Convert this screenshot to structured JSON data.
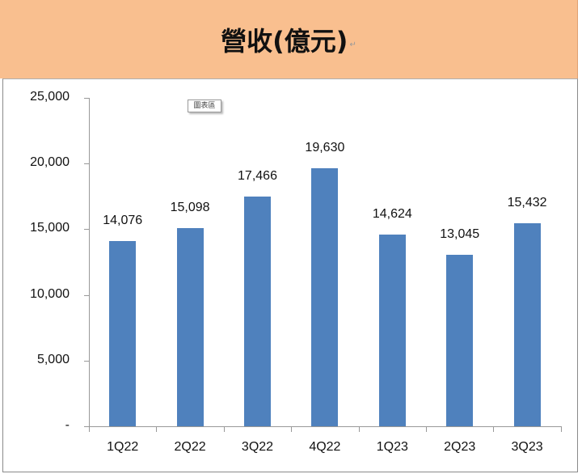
{
  "header": {
    "title": "營收(億元)",
    "paragraph_mark": "↵"
  },
  "tooltip": {
    "label": "圖表區"
  },
  "chart_data": {
    "type": "bar",
    "title": "營收(億元)",
    "xlabel": "",
    "ylabel": "",
    "categories": [
      "1Q22",
      "2Q22",
      "3Q22",
      "4Q22",
      "1Q23",
      "2Q23",
      "3Q23"
    ],
    "values": [
      14076,
      15098,
      17466,
      19630,
      14624,
      13045,
      15432
    ],
    "value_labels": [
      "14,076",
      "15,098",
      "17,466",
      "19,630",
      "14,624",
      "13,045",
      "15,432"
    ],
    "ylim": [
      0,
      25000
    ],
    "yticks": [
      0,
      5000,
      10000,
      15000,
      20000,
      25000
    ],
    "ytick_labels": [
      "-",
      "5,000",
      "10,000",
      "15,000",
      "20,000",
      "25,000"
    ],
    "grid": false,
    "legend": "none",
    "bar_color": "#4f81bd"
  }
}
